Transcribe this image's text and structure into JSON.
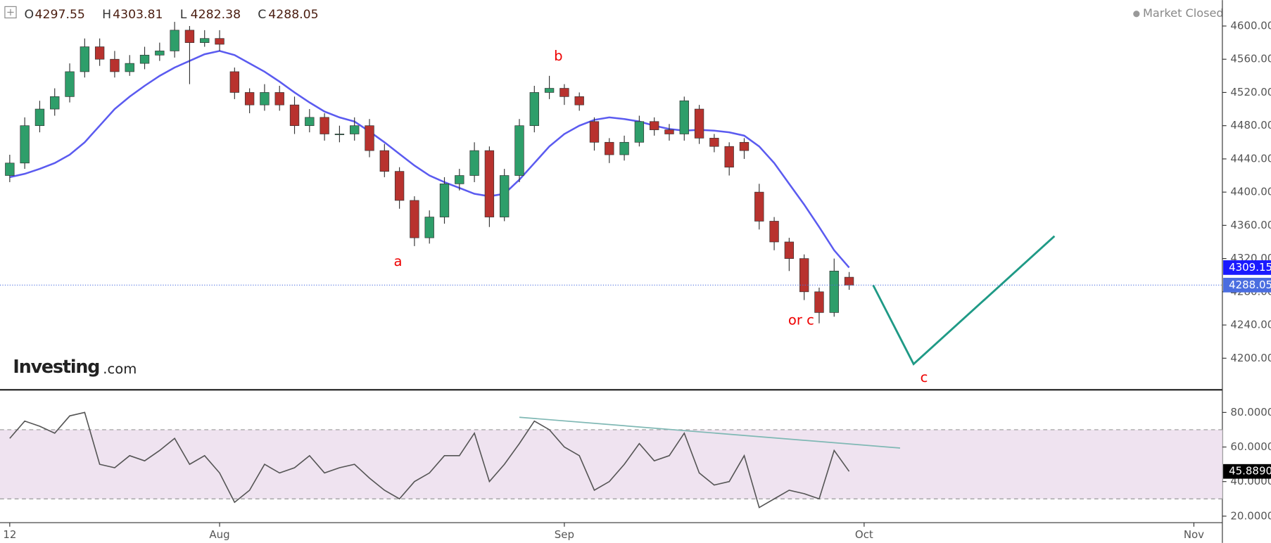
{
  "header": {
    "status": "Market Closed",
    "logo": "Investing",
    "logo_suffix": ".com"
  },
  "chart_data": [
    {
      "type": "candlestick",
      "ohlc_labels": [
        "O",
        "H",
        "L",
        "C"
      ],
      "x": [
        0,
        1,
        2,
        3,
        4,
        5,
        6,
        7,
        8,
        9,
        10,
        11,
        12,
        13,
        14,
        15,
        16,
        17,
        18,
        19,
        20,
        21,
        22,
        23,
        24,
        25,
        26,
        27,
        28,
        29,
        30,
        31,
        32,
        33,
        34,
        35,
        36,
        37,
        38,
        39,
        40,
        41,
        42,
        43,
        44,
        45,
        46,
        47,
        48,
        49,
        50,
        51,
        52,
        53,
        54,
        55,
        56
      ],
      "open": [
        4420,
        4435,
        4480,
        4500,
        4515,
        4545,
        4575,
        4560,
        4545,
        4555,
        4565,
        4570,
        4595,
        4580,
        4585,
        4545,
        4520,
        4505,
        4520,
        4505,
        4480,
        4490,
        4470,
        4470,
        4480,
        4450,
        4425,
        4390,
        4345,
        4370,
        4410,
        4420,
        4450,
        4370,
        4420,
        4480,
        4520,
        4525,
        4515,
        4485,
        4460,
        4445,
        4460,
        4485,
        4475,
        4470,
        4500,
        4465,
        4455,
        4460,
        4400,
        4365,
        4340,
        4320,
        4280,
        4255,
        4297.55
      ],
      "high": [
        4445,
        4490,
        4510,
        4525,
        4555,
        4585,
        4585,
        4570,
        4565,
        4575,
        4580,
        4605,
        4600,
        4595,
        4595,
        4550,
        4525,
        4530,
        4528,
        4515,
        4500,
        4495,
        4480,
        4490,
        4488,
        4458,
        4430,
        4395,
        4378,
        4418,
        4428,
        4460,
        4455,
        4428,
        4488,
        4528,
        4540,
        4530,
        4520,
        4490,
        4465,
        4468,
        4492,
        4490,
        4482,
        4515,
        4505,
        4470,
        4460,
        4465,
        4410,
        4370,
        4345,
        4325,
        4285,
        4320,
        4303.81
      ],
      "low": [
        4412,
        4428,
        4472,
        4492,
        4508,
        4538,
        4552,
        4538,
        4540,
        4548,
        4558,
        4562,
        4530,
        4575,
        4570,
        4512,
        4495,
        4498,
        4498,
        4470,
        4472,
        4462,
        4460,
        4462,
        4442,
        4418,
        4380,
        4335,
        4338,
        4362,
        4402,
        4412,
        4358,
        4365,
        4412,
        4472,
        4512,
        4505,
        4498,
        4450,
        4435,
        4438,
        4455,
        4468,
        4462,
        4462,
        4458,
        4448,
        4420,
        4440,
        4355,
        4330,
        4305,
        4270,
        4242,
        4250,
        4282.38
      ],
      "close": [
        4435,
        4480,
        4500,
        4515,
        4545,
        4575,
        4560,
        4545,
        4555,
        4565,
        4570,
        4595,
        4580,
        4585,
        4578,
        4520,
        4505,
        4520,
        4505,
        4480,
        4490,
        4470,
        4470,
        4480,
        4450,
        4425,
        4390,
        4345,
        4370,
        4410,
        4420,
        4450,
        4370,
        4420,
        4480,
        4520,
        4525,
        4515,
        4505,
        4460,
        4445,
        4460,
        4485,
        4475,
        4470,
        4510,
        4465,
        4455,
        4430,
        4450,
        4365,
        4340,
        4320,
        4280,
        4255,
        4305,
        4288.05
      ],
      "up_color": "#2e9e6a",
      "down_color": "#b8322e",
      "ma": [
        4418,
        4422,
        4428,
        4435,
        4445,
        4460,
        4480,
        4500,
        4515,
        4528,
        4540,
        4550,
        4558,
        4566,
        4570,
        4565,
        4555,
        4545,
        4533,
        4520,
        4508,
        4497,
        4490,
        4485,
        4473,
        4460,
        4446,
        4432,
        4420,
        4412,
        4405,
        4398,
        4395,
        4398,
        4415,
        4435,
        4455,
        4470,
        4480,
        4487,
        4490,
        4488,
        4485,
        4480,
        4476,
        4474,
        4475,
        4474,
        4472,
        4468,
        4455,
        4435,
        4410,
        4385,
        4358,
        4330,
        4309.15
      ],
      "ma_color": "#5b5bf0",
      "projection": {
        "x": [
          57.6,
          60.3,
          69.7
        ],
        "values": [
          4288,
          4193,
          4347
        ],
        "color": "#1f9a86"
      },
      "annotations": [
        {
          "text": "a",
          "x": 25.9,
          "y": 4316
        },
        {
          "text": "b",
          "x": 36.6,
          "y": 4563
        },
        {
          "text": "or c",
          "x": 52.8,
          "y": 4245
        },
        {
          "text": "c",
          "x": 61,
          "y": 4176
        }
      ],
      "xlim": [
        -0.65,
        80.9
      ],
      "xticks": [
        {
          "value": 0,
          "label": "12"
        },
        {
          "value": 14,
          "label": "Aug"
        },
        {
          "value": 37,
          "label": "Sep"
        },
        {
          "value": 57,
          "label": "Oct"
        },
        {
          "value": 79,
          "label": "Nov"
        }
      ],
      "ylim": [
        4162,
        4631.2
      ],
      "yticks": [
        {
          "value": 4200,
          "label": "4200.00"
        },
        {
          "value": 4240,
          "label": "4240.00"
        },
        {
          "value": 4280,
          "label": "4280.00"
        },
        {
          "value": 4320,
          "label": "4320.00"
        },
        {
          "value": 4360,
          "label": "4360.00"
        },
        {
          "value": 4400,
          "label": "4400.00"
        },
        {
          "value": 4440,
          "label": "4440.00"
        },
        {
          "value": 4480,
          "label": "4480.00"
        },
        {
          "value": 4520,
          "label": "4520.00"
        },
        {
          "value": 4560,
          "label": "4560.00"
        },
        {
          "value": 4600,
          "label": "4600.00"
        }
      ],
      "grid": false
    },
    {
      "type": "line",
      "x": [
        0,
        1,
        2,
        3,
        4,
        5,
        6,
        7,
        8,
        9,
        10,
        11,
        12,
        13,
        14,
        15,
        16,
        17,
        18,
        19,
        20,
        21,
        22,
        23,
        24,
        25,
        26,
        27,
        28,
        29,
        30,
        31,
        32,
        33,
        34,
        35,
        36,
        37,
        38,
        39,
        40,
        41,
        42,
        43,
        44,
        45,
        46,
        47,
        48,
        49,
        50,
        51,
        52,
        53,
        54,
        55,
        56
      ],
      "values": [
        65,
        75,
        72,
        68,
        78,
        80,
        50,
        48,
        55,
        52,
        58,
        65,
        50,
        55,
        45,
        28,
        35,
        50,
        45,
        48,
        55,
        45,
        48,
        50,
        42,
        35,
        30,
        40,
        45,
        55,
        55,
        68,
        40,
        50,
        62,
        75,
        70,
        60,
        55,
        35,
        40,
        50,
        62,
        52,
        55,
        68,
        45,
        38,
        40,
        55,
        25,
        30,
        35,
        33,
        30,
        58,
        45.889
      ],
      "last_value_label": "45.8890",
      "color": "#555555",
      "band": [
        30,
        70
      ],
      "band_color": "#efe3f0",
      "trendline": {
        "x": [
          34,
          59.4
        ],
        "values": [
          77.2,
          59.4
        ],
        "color": "#7fb8b4"
      },
      "xlim": [
        -0.65,
        80.9
      ],
      "ylim": [
        16.25,
        91.7
      ],
      "yticks": [
        {
          "value": 20,
          "label": "20.0000"
        },
        {
          "value": 40,
          "label": "40.0000"
        },
        {
          "value": 60,
          "label": "60.0000"
        },
        {
          "value": 80,
          "label": "80.0000"
        }
      ],
      "grid": false
    }
  ]
}
